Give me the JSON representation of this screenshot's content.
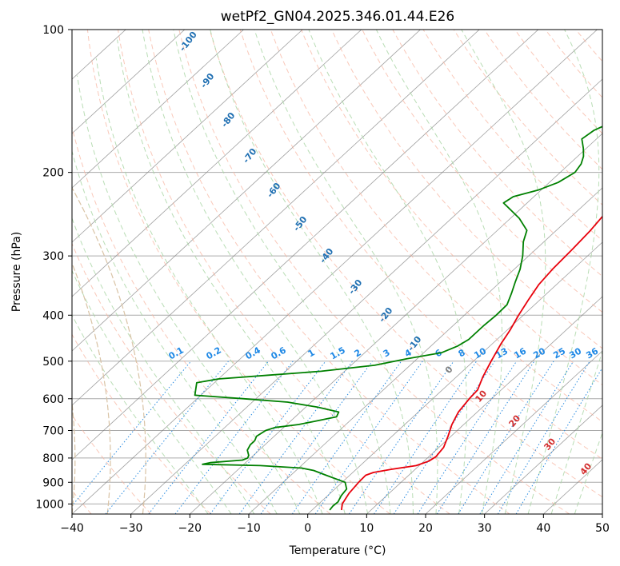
{
  "chart_data": {
    "type": "line",
    "title": "wetPf2_GN04.2025.346.01.44.E26",
    "xlabel": "Temperature (°C)",
    "ylabel": "Pressure (hPa)",
    "xlim": [
      -40,
      50
    ],
    "ylim": [
      1050,
      100
    ],
    "y_scale": "log",
    "grid": true,
    "x_ticks": [
      -40,
      -30,
      -20,
      -10,
      0,
      10,
      20,
      30,
      40,
      50
    ],
    "y_ticks": [
      100,
      200,
      300,
      400,
      500,
      600,
      700,
      800,
      900,
      1000
    ],
    "series": [
      {
        "color": "#e8000b",
        "points": [
          [
            1030,
            5.0
          ],
          [
            1000,
            4.0
          ],
          [
            950,
            3.2
          ],
          [
            900,
            2.8
          ],
          [
            870,
            2.7
          ],
          [
            858,
            3.5
          ],
          [
            845,
            6.0
          ],
          [
            830,
            9.5
          ],
          [
            812,
            10.8
          ],
          [
            795,
            11.2
          ],
          [
            760,
            10.8
          ],
          [
            720,
            9.5
          ],
          [
            680,
            8.0
          ],
          [
            640,
            6.8
          ],
          [
            600,
            6.2
          ],
          [
            575,
            6.0
          ],
          [
            540,
            4.5
          ],
          [
            500,
            3.0
          ],
          [
            460,
            1.5
          ],
          [
            430,
            0.5
          ],
          [
            400,
            -0.8
          ],
          [
            370,
            -2.0
          ],
          [
            345,
            -3.0
          ],
          [
            320,
            -3.5
          ],
          [
            290,
            -3.8
          ],
          [
            265,
            -4.2
          ],
          [
            245,
            -4.8
          ],
          [
            225,
            -6.0
          ],
          [
            205,
            -6.2
          ],
          [
            192,
            -4.8
          ],
          [
            183,
            -2.0
          ],
          [
            175,
            2.0
          ],
          [
            167,
            6.0
          ],
          [
            160,
            8.0
          ],
          [
            150,
            9.5
          ],
          [
            138,
            11.5
          ],
          [
            128,
            15.0
          ],
          [
            118,
            20.0
          ],
          [
            112,
            24.0
          ],
          [
            108,
            26.0
          ],
          [
            100,
            26.5
          ]
        ]
      },
      {
        "color": "#008000",
        "points": [
          [
            1030,
            3.0
          ],
          [
            1010,
            2.8
          ],
          [
            990,
            2.9
          ],
          [
            960,
            2.3
          ],
          [
            930,
            2.0
          ],
          [
            900,
            0.5
          ],
          [
            870,
            -4.0
          ],
          [
            850,
            -7.0
          ],
          [
            840,
            -9.5
          ],
          [
            830,
            -17.0
          ],
          [
            825,
            -27.0
          ],
          [
            818,
            -26.0
          ],
          [
            808,
            -21.0
          ],
          [
            800,
            -20.5
          ],
          [
            790,
            -20.8
          ],
          [
            770,
            -22.0
          ],
          [
            750,
            -22.5
          ],
          [
            735,
            -22.5
          ],
          [
            720,
            -23.0
          ],
          [
            700,
            -22.5
          ],
          [
            690,
            -21.5
          ],
          [
            680,
            -18.0
          ],
          [
            670,
            -16.0
          ],
          [
            655,
            -13.0
          ],
          [
            640,
            -13.5
          ],
          [
            625,
            -18.0
          ],
          [
            610,
            -24.0
          ],
          [
            600,
            -32.0
          ],
          [
            590,
            -41.0
          ],
          [
            555,
            -43.0
          ],
          [
            545,
            -40.0
          ],
          [
            535,
            -32.0
          ],
          [
            525,
            -24.0
          ],
          [
            510,
            -16.0
          ],
          [
            495,
            -12.0
          ],
          [
            480,
            -7.0
          ],
          [
            465,
            -5.5
          ],
          [
            450,
            -4.8
          ],
          [
            420,
            -4.8
          ],
          [
            400,
            -4.6
          ],
          [
            380,
            -4.7
          ],
          [
            360,
            -6.0
          ],
          [
            340,
            -7.5
          ],
          [
            320,
            -9.0
          ],
          [
            300,
            -11.0
          ],
          [
            280,
            -13.5
          ],
          [
            265,
            -15.0
          ],
          [
            250,
            -18.5
          ],
          [
            240,
            -21.5
          ],
          [
            232,
            -24.0
          ],
          [
            225,
            -23.5
          ],
          [
            218,
            -20.5
          ],
          [
            210,
            -18.5
          ],
          [
            200,
            -17.5
          ],
          [
            192,
            -18.0
          ],
          [
            185,
            -19.0
          ],
          [
            178,
            -20.5
          ],
          [
            170,
            -22.5
          ],
          [
            163,
            -22.0
          ],
          [
            155,
            -20.0
          ],
          [
            148,
            -18.0
          ],
          [
            140,
            -15.5
          ],
          [
            130,
            -12.0
          ],
          [
            120,
            -6.0
          ],
          [
            110,
            1.0
          ],
          [
            100,
            8.0
          ]
        ]
      }
    ],
    "dry_adiabat_labels": [
      "-100",
      "-90",
      "-80",
      "-70",
      "-60",
      "-50",
      "-40",
      "-30",
      "-20",
      "-10"
    ],
    "mixing_ratio_labels": [
      "0.1",
      "0.2",
      "0.4",
      "0.6",
      "1",
      "1.5",
      "2",
      "3",
      "4",
      "6",
      "8",
      "10",
      "13",
      "16",
      "20",
      "25",
      "30",
      "36"
    ],
    "moist_adiabat_labels": [
      "0",
      "10",
      "20",
      "30",
      "40"
    ],
    "colors": {
      "temperature": "#e8000b",
      "dewpoint": "#008000",
      "dry_adiabat": "#f7b6a1",
      "moist_adiabat": "#a8d5a2",
      "mixing_ratio": "#2b8ce0",
      "dry_label": "#1f6fb2",
      "mix_label": "#1e88e5",
      "moist_label": "#d32f2f",
      "zero_label": "#7f7f7f",
      "isotherm": "#7f7f7f",
      "isobar": "#aaaaaa",
      "curve": "#d9c3a5"
    }
  }
}
